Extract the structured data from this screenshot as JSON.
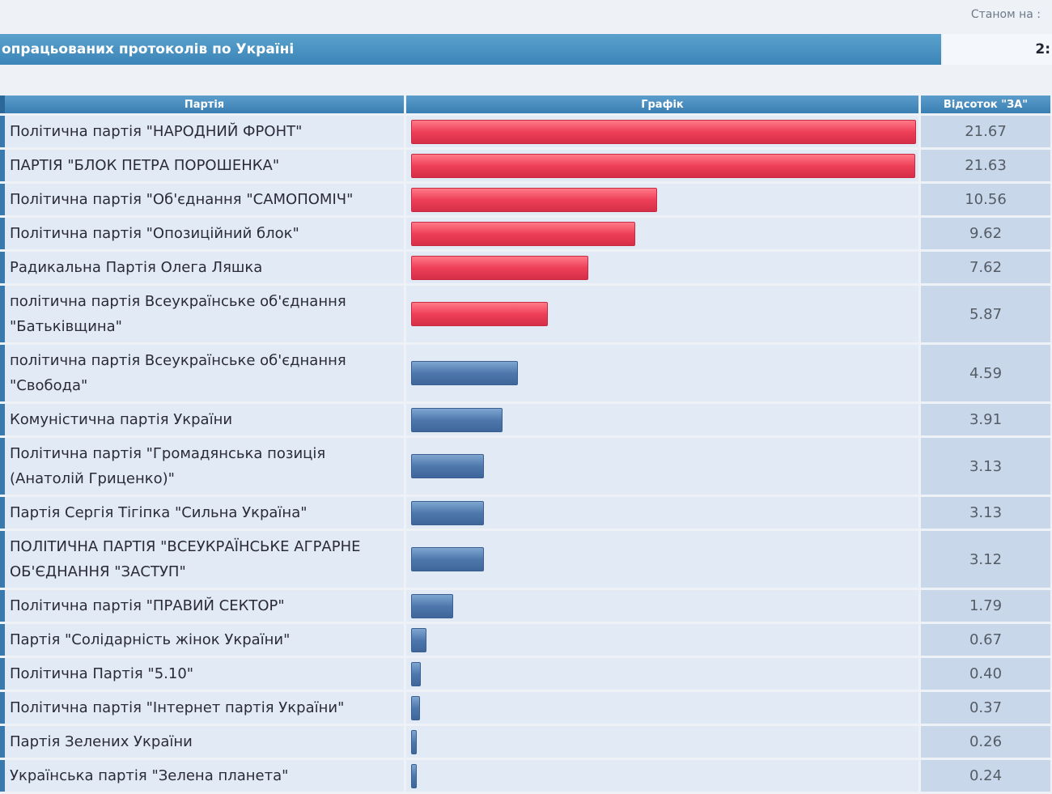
{
  "header": {
    "status_label": "Станом на :",
    "summary_label": "опрацьованих протоколів по Україні",
    "summary_value": "2:"
  },
  "table": {
    "columns": [
      "Партія",
      "Графік",
      "Відсоток \"ЗА\""
    ],
    "rows": [
      {
        "party": "Політична партія \"НАРОДНИЙ ФРОНТ\"",
        "percent": "21.67",
        "value": 21.67,
        "color": "red"
      },
      {
        "party": "ПАРТІЯ \"БЛОК ПЕТРА ПОРОШЕНКА\"",
        "percent": "21.63",
        "value": 21.63,
        "color": "red"
      },
      {
        "party": "Політична партія \"Об'єднання \"САМОПОМІЧ\"",
        "percent": "10.56",
        "value": 10.56,
        "color": "red"
      },
      {
        "party": "Політична партія \"Опозиційний блок\"",
        "percent": "9.62",
        "value": 9.62,
        "color": "red"
      },
      {
        "party": "Радикальна Партія Олега Ляшка",
        "percent": "7.62",
        "value": 7.62,
        "color": "red"
      },
      {
        "party": "політична партія Всеукраїнське об'єднання \"Батьківщина\"",
        "percent": "5.87",
        "value": 5.87,
        "color": "red"
      },
      {
        "party": "політична партія Всеукраїнське об'єднання \"Свобода\"",
        "percent": "4.59",
        "value": 4.59,
        "color": "blue"
      },
      {
        "party": "Комуністична партія України",
        "percent": "3.91",
        "value": 3.91,
        "color": "blue"
      },
      {
        "party": "Політична партія \"Громадянська позиція (Анатолій Гриценко)\"",
        "percent": "3.13",
        "value": 3.13,
        "color": "blue"
      },
      {
        "party": "Партія Сергія Тігіпка \"Сильна Україна\"",
        "percent": "3.13",
        "value": 3.13,
        "color": "blue"
      },
      {
        "party": "ПОЛІТИЧНА ПАРТІЯ \"ВСЕУКРАЇНСЬКЕ АГРАРНЕ ОБ'ЄДНАННЯ \"ЗАСТУП\"",
        "percent": "3.12",
        "value": 3.12,
        "color": "blue"
      },
      {
        "party": "Політична партія \"ПРАВИЙ СЕКТОР\"",
        "percent": "1.79",
        "value": 1.79,
        "color": "blue"
      },
      {
        "party": "Партія \"Солідарність жінок України\"",
        "percent": "0.67",
        "value": 0.67,
        "color": "blue"
      },
      {
        "party": "Політична Партія \"5.10\"",
        "percent": "0.40",
        "value": 0.4,
        "color": "blue"
      },
      {
        "party": "Політична партія \"Інтернет партія України\"",
        "percent": "0.37",
        "value": 0.37,
        "color": "blue"
      },
      {
        "party": "Партія Зелених України",
        "percent": "0.26",
        "value": 0.26,
        "color": "blue"
      },
      {
        "party": "Українська партія \"Зелена планета\"",
        "percent": "0.24",
        "value": 0.24,
        "color": "blue"
      }
    ],
    "scale_max": 21.67
  }
}
